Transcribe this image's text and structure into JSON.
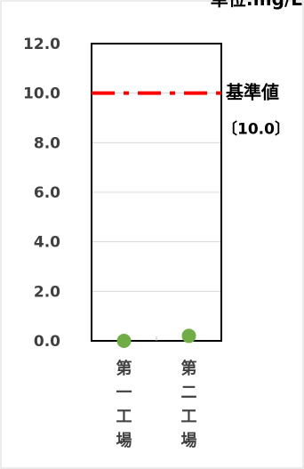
{
  "chart_data": {
    "type": "scatter",
    "unit_label": "単位:mg/L",
    "categories": [
      "第一工場",
      "第二工場"
    ],
    "series": [
      {
        "values": [
          0.0,
          0.2
        ],
        "color": "#70ad47"
      }
    ],
    "ylim": [
      0,
      12
    ],
    "yticks": [
      "0.0",
      "2.0",
      "4.0",
      "6.0",
      "8.0",
      "10.0",
      "12.0"
    ],
    "reference_line": {
      "value": 10.0,
      "label": "基準値",
      "value_label": "〔10.0〕",
      "color": "#ff0000",
      "style": "dash-dot"
    },
    "grid": true,
    "gridline_color": "#d9d9d9",
    "axis_color": "#000000"
  }
}
